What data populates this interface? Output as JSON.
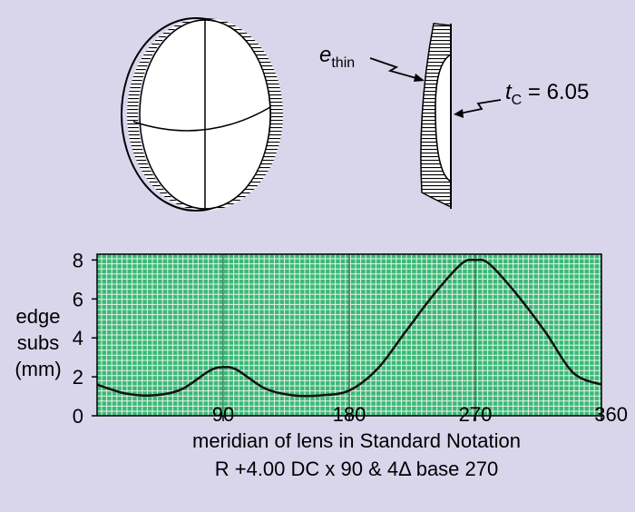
{
  "figure": {
    "edge_label": "e",
    "edge_label_sub": "thin",
    "center_label": "t",
    "center_label_sub": "C",
    "center_value_text": " = 6.05"
  },
  "chart_data": {
    "type": "line",
    "x_label": "meridian of lens in Standard Notation",
    "subtitle": "R +4.00 DC x 90 & 4Δ base 270",
    "y_label_lines": [
      "edge",
      "subs",
      "(mm)"
    ],
    "x_range": [
      0,
      360
    ],
    "y_range": [
      0,
      8.3
    ],
    "x_ticks": [
      90,
      180,
      270,
      360
    ],
    "y_ticks": [
      0,
      2,
      4,
      6,
      8
    ],
    "grid": true,
    "colors": {
      "plot_bg": "#3cb878",
      "grid": "#e4f5e8",
      "major_grid": "#3a6a4a",
      "line": "#111111"
    },
    "series": [
      {
        "x": [
          0,
          20,
          40,
          60,
          80,
          90,
          100,
          120,
          140,
          160,
          180,
          200,
          220,
          240,
          260,
          270,
          280,
          300,
          320,
          340,
          360
        ],
        "y": [
          1.6,
          1.15,
          1.05,
          1.35,
          2.3,
          2.5,
          2.35,
          1.4,
          1.05,
          1.05,
          1.3,
          2.4,
          4.3,
          6.2,
          7.8,
          8.0,
          7.8,
          6.2,
          4.3,
          2.2,
          1.6
        ]
      }
    ]
  }
}
